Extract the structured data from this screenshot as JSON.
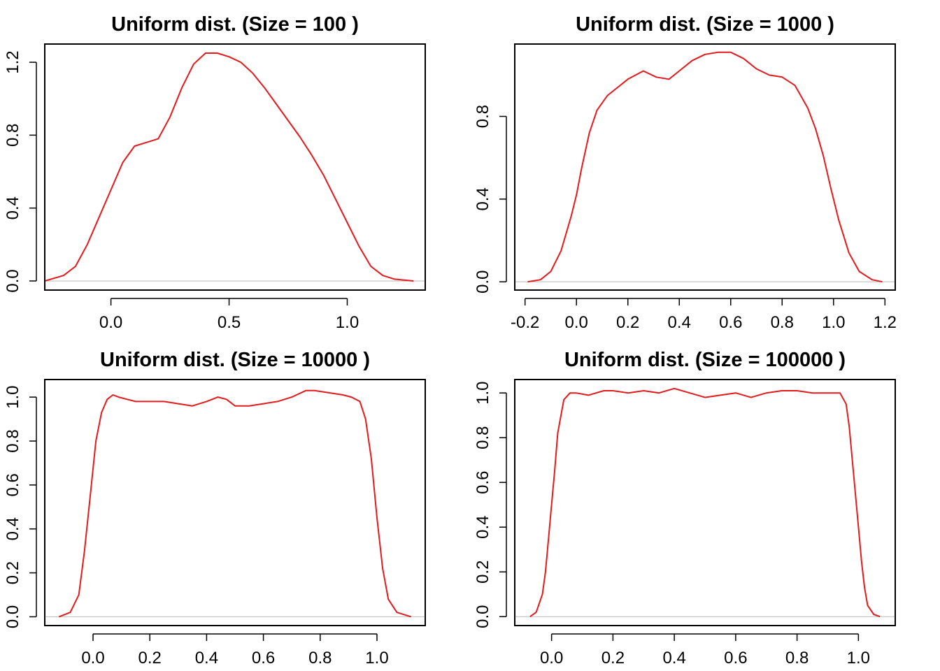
{
  "colors": {
    "curve": "#e41a1c",
    "baseline": "#b8b8b8",
    "axes": "#000000"
  },
  "chart_data": [
    {
      "type": "line",
      "title": "Uniform dist. (Size = 100 )",
      "xlabel": "",
      "ylabel": "",
      "xlim": [
        -0.28,
        1.33
      ],
      "ylim": [
        -0.05,
        1.3
      ],
      "xticks": [
        0.0,
        0.5,
        1.0
      ],
      "xtick_labels": [
        "0.0",
        "0.5",
        "1.0"
      ],
      "yticks": [
        0.0,
        0.4,
        0.8,
        1.2
      ],
      "ytick_labels": [
        "0.0",
        "0.4",
        "0.8",
        "1.2"
      ],
      "series": [
        {
          "x": [
            -0.28,
            -0.2,
            -0.15,
            -0.1,
            -0.05,
            0.0,
            0.05,
            0.1,
            0.15,
            0.2,
            0.25,
            0.3,
            0.35,
            0.4,
            0.45,
            0.5,
            0.55,
            0.6,
            0.65,
            0.7,
            0.75,
            0.8,
            0.85,
            0.9,
            0.95,
            1.0,
            1.05,
            1.1,
            1.15,
            1.2,
            1.28
          ],
          "y": [
            0.0,
            0.03,
            0.08,
            0.2,
            0.35,
            0.5,
            0.65,
            0.74,
            0.76,
            0.78,
            0.9,
            1.06,
            1.19,
            1.25,
            1.25,
            1.23,
            1.2,
            1.14,
            1.06,
            0.97,
            0.88,
            0.79,
            0.69,
            0.58,
            0.45,
            0.32,
            0.19,
            0.08,
            0.03,
            0.01,
            0.0
          ]
        }
      ]
    },
    {
      "type": "line",
      "title": "Uniform dist. (Size = 1000 )",
      "xlabel": "",
      "ylabel": "",
      "xlim": [
        -0.24,
        1.24
      ],
      "ylim": [
        -0.04,
        1.15
      ],
      "xticks": [
        -0.2,
        0.0,
        0.2,
        0.4,
        0.6,
        0.8,
        1.0,
        1.2
      ],
      "xtick_labels": [
        "-0.2",
        "0.0",
        "0.2",
        "0.4",
        "0.6",
        "0.8",
        "1.0",
        "1.2"
      ],
      "yticks": [
        0.0,
        0.4,
        0.8
      ],
      "ytick_labels": [
        "0.0",
        "0.4",
        "0.8"
      ],
      "series": [
        {
          "x": [
            -0.19,
            -0.14,
            -0.1,
            -0.06,
            -0.02,
            0.0,
            0.02,
            0.05,
            0.08,
            0.12,
            0.16,
            0.2,
            0.26,
            0.31,
            0.36,
            0.4,
            0.45,
            0.5,
            0.55,
            0.6,
            0.65,
            0.7,
            0.75,
            0.8,
            0.85,
            0.9,
            0.93,
            0.96,
            0.99,
            1.02,
            1.06,
            1.1,
            1.15,
            1.19
          ],
          "y": [
            0.0,
            0.01,
            0.05,
            0.15,
            0.32,
            0.42,
            0.55,
            0.72,
            0.83,
            0.9,
            0.94,
            0.98,
            1.02,
            0.99,
            0.98,
            1.02,
            1.07,
            1.1,
            1.11,
            1.11,
            1.08,
            1.03,
            1.0,
            0.99,
            0.95,
            0.84,
            0.74,
            0.61,
            0.45,
            0.3,
            0.14,
            0.05,
            0.01,
            0.0
          ]
        }
      ]
    },
    {
      "type": "line",
      "title": "Uniform dist. (Size = 10000 )",
      "xlabel": "",
      "ylabel": "",
      "xlim": [
        -0.17,
        1.17
      ],
      "ylim": [
        -0.04,
        1.08
      ],
      "xticks": [
        0.0,
        0.2,
        0.4,
        0.6,
        0.8,
        1.0
      ],
      "xtick_labels": [
        "0.0",
        "0.2",
        "0.4",
        "0.6",
        "0.8",
        "1.0"
      ],
      "yticks": [
        0.0,
        0.2,
        0.4,
        0.6,
        0.8,
        1.0
      ],
      "ytick_labels": [
        "0.0",
        "0.2",
        "0.4",
        "0.6",
        "0.8",
        "1.0"
      ],
      "series": [
        {
          "x": [
            -0.12,
            -0.08,
            -0.05,
            -0.03,
            -0.01,
            0.01,
            0.03,
            0.05,
            0.07,
            0.09,
            0.12,
            0.15,
            0.2,
            0.25,
            0.3,
            0.35,
            0.4,
            0.44,
            0.47,
            0.5,
            0.55,
            0.6,
            0.65,
            0.7,
            0.75,
            0.78,
            0.83,
            0.88,
            0.91,
            0.94,
            0.96,
            0.98,
            1.0,
            1.02,
            1.04,
            1.07,
            1.12
          ],
          "y": [
            0.0,
            0.02,
            0.1,
            0.3,
            0.55,
            0.8,
            0.93,
            0.99,
            1.01,
            1.0,
            0.99,
            0.98,
            0.98,
            0.98,
            0.97,
            0.96,
            0.98,
            1.0,
            0.99,
            0.96,
            0.96,
            0.97,
            0.98,
            1.0,
            1.03,
            1.03,
            1.02,
            1.01,
            1.0,
            0.98,
            0.9,
            0.72,
            0.45,
            0.22,
            0.08,
            0.02,
            0.0
          ]
        }
      ]
    },
    {
      "type": "line",
      "title": "Uniform dist. (Size = 100000 )",
      "xlabel": "",
      "ylabel": "",
      "xlim": [
        -0.12,
        1.12
      ],
      "ylim": [
        -0.04,
        1.06
      ],
      "xticks": [
        0.0,
        0.2,
        0.4,
        0.6,
        0.8,
        1.0
      ],
      "xtick_labels": [
        "0.0",
        "0.2",
        "0.4",
        "0.6",
        "0.8",
        "1.0"
      ],
      "yticks": [
        0.0,
        0.2,
        0.4,
        0.6,
        0.8,
        1.0
      ],
      "ytick_labels": [
        "0.0",
        "0.2",
        "0.4",
        "0.6",
        "0.8",
        "1.0"
      ],
      "series": [
        {
          "x": [
            -0.07,
            -0.05,
            -0.03,
            -0.02,
            -0.01,
            0.0,
            0.01,
            0.02,
            0.04,
            0.06,
            0.08,
            0.12,
            0.17,
            0.2,
            0.25,
            0.3,
            0.35,
            0.4,
            0.45,
            0.5,
            0.55,
            0.6,
            0.65,
            0.7,
            0.75,
            0.8,
            0.85,
            0.9,
            0.94,
            0.96,
            0.97,
            0.98,
            0.99,
            1.0,
            1.01,
            1.02,
            1.03,
            1.05,
            1.07
          ],
          "y": [
            0.0,
            0.02,
            0.1,
            0.2,
            0.35,
            0.5,
            0.65,
            0.82,
            0.97,
            1.0,
            1.0,
            0.99,
            1.01,
            1.01,
            1.0,
            1.01,
            1.0,
            1.02,
            1.0,
            0.98,
            0.99,
            1.0,
            0.98,
            1.0,
            1.01,
            1.01,
            1.0,
            1.0,
            1.0,
            0.95,
            0.85,
            0.7,
            0.55,
            0.4,
            0.25,
            0.13,
            0.05,
            0.01,
            0.0
          ]
        }
      ]
    }
  ]
}
